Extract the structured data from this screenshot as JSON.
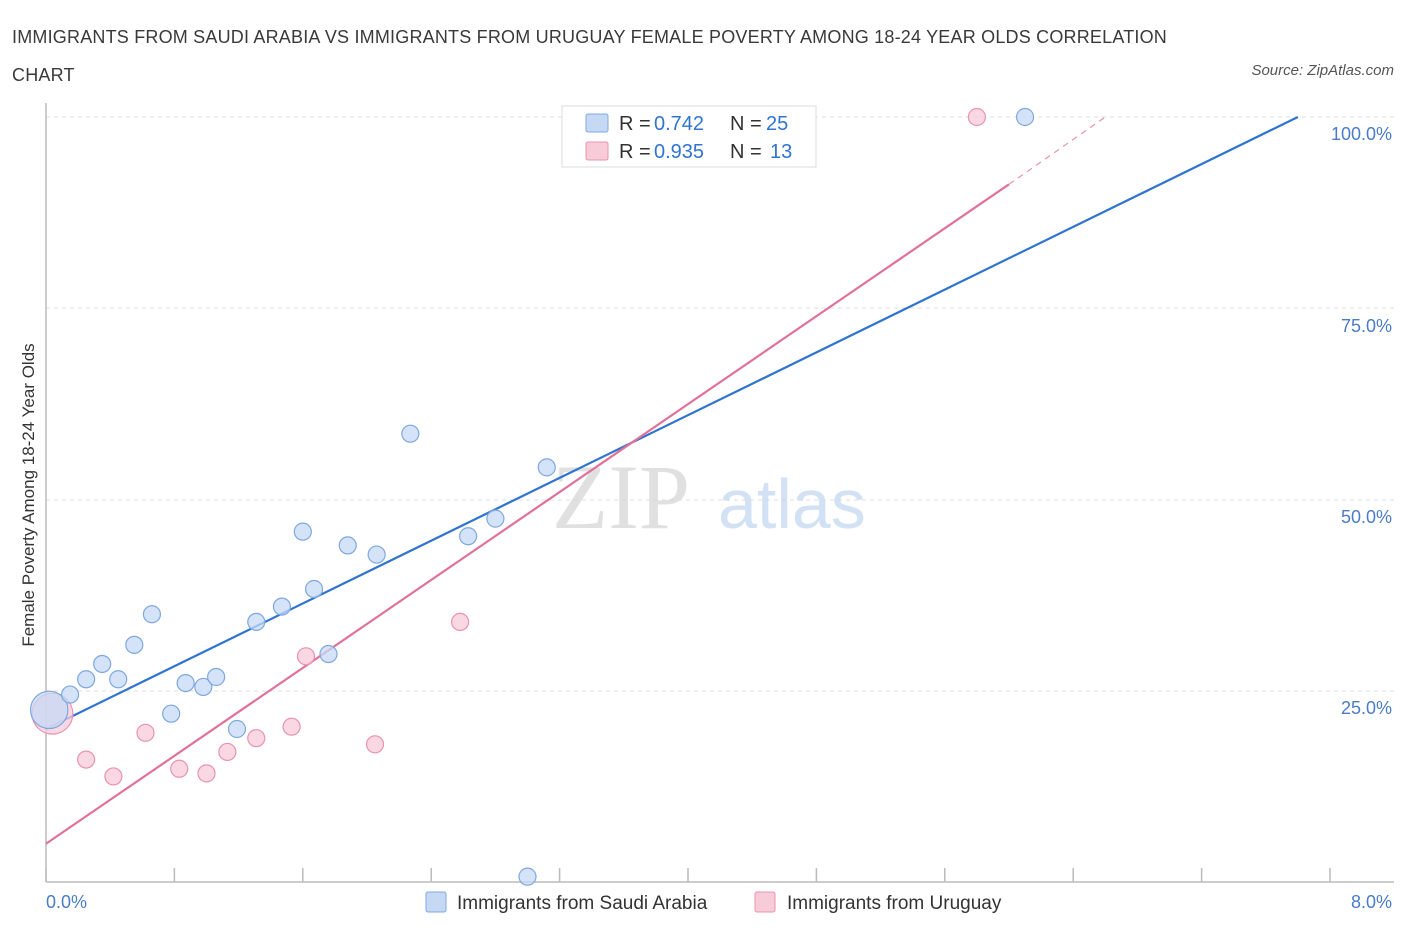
{
  "header": {
    "title": "IMMIGRANTS FROM SAUDI ARABIA VS IMMIGRANTS FROM URUGUAY FEMALE POVERTY AMONG 18-24 YEAR OLDS CORRELATION CHART",
    "source": "Source: ZipAtlas.com"
  },
  "colors": {
    "saudi_fill": "#c5d9f5",
    "saudi_stroke": "#7ea8e0",
    "saudi_line": "#2f74d0",
    "uruguay_fill": "#f8cbd9",
    "uruguay_stroke": "#e993b0",
    "uruguay_line": "#e0719a",
    "grid": "#dddddd",
    "accent_text": "#4a7cc7"
  },
  "chart_data": {
    "type": "scatter",
    "title": "IMMIGRANTS FROM SAUDI ARABIA VS IMMIGRANTS FROM URUGUAY FEMALE POVERTY AMONG 18-24 YEAR OLDS CORRELATION CHART",
    "xlabel": "",
    "ylabel": "Female Poverty Among 18-24 Year Olds",
    "xlim": [
      0,
      8
    ],
    "ylim": [
      0,
      100
    ],
    "x_tick_labels": [
      "0.0%",
      "8.0%"
    ],
    "y_tick_labels": [
      "25.0%",
      "50.0%",
      "75.0%",
      "100.0%"
    ],
    "grid": true,
    "watermark": {
      "part1": "ZIP",
      "part2": "atlas"
    },
    "legend": {
      "rows": [
        {
          "r_label": "R =",
          "r_value": "0.742",
          "n_label": "N =",
          "n_value": "25"
        },
        {
          "r_label": "R =",
          "r_value": "0.935",
          "n_label": "N =",
          "n_value": "13"
        }
      ]
    },
    "series": [
      {
        "name": "Immigrants from Saudi Arabia",
        "points": [
          [
            0.02,
            22.5,
            2.2
          ],
          [
            0.15,
            24.5,
            1
          ],
          [
            0.25,
            26.5,
            1
          ],
          [
            0.35,
            28.5,
            1
          ],
          [
            0.45,
            26.5,
            1
          ],
          [
            0.55,
            31,
            1
          ],
          [
            0.66,
            35,
            1
          ],
          [
            0.78,
            22,
            1
          ],
          [
            0.87,
            26,
            1
          ],
          [
            0.98,
            25.5,
            1
          ],
          [
            1.06,
            26.8,
            1
          ],
          [
            1.19,
            20,
            1
          ],
          [
            1.31,
            34,
            1
          ],
          [
            1.47,
            36,
            1
          ],
          [
            1.6,
            45.8,
            1
          ],
          [
            1.67,
            38.3,
            1
          ],
          [
            1.76,
            29.8,
            1
          ],
          [
            1.88,
            44,
            1
          ],
          [
            2.06,
            42.8,
            1
          ],
          [
            2.27,
            58.6,
            1
          ],
          [
            2.63,
            45.2,
            1
          ],
          [
            2.8,
            47.5,
            1
          ],
          [
            3.12,
            54.2,
            1
          ],
          [
            3.0,
            0.7,
            1
          ],
          [
            6.1,
            100,
            1
          ]
        ],
        "trend": {
          "x0": 0,
          "y0": 20,
          "x1": 7.8,
          "y1": 100
        }
      },
      {
        "name": "Immigrants from Uruguay",
        "points": [
          [
            0.04,
            22,
            2.4
          ],
          [
            0.25,
            16,
            1
          ],
          [
            0.42,
            13.8,
            1
          ],
          [
            0.62,
            19.5,
            1
          ],
          [
            0.83,
            14.8,
            1
          ],
          [
            1.0,
            14.2,
            1
          ],
          [
            1.13,
            17,
            1
          ],
          [
            1.31,
            18.8,
            1
          ],
          [
            1.53,
            20.3,
            1
          ],
          [
            1.62,
            29.5,
            1
          ],
          [
            2.05,
            18,
            1
          ],
          [
            2.58,
            34,
            1
          ],
          [
            5.8,
            100,
            1
          ]
        ],
        "trend": {
          "x0": 0,
          "y0": 5,
          "x1": 6,
          "y1": 91.2,
          "dash_x1": 6.6,
          "dash_y1": 100
        }
      }
    ]
  }
}
